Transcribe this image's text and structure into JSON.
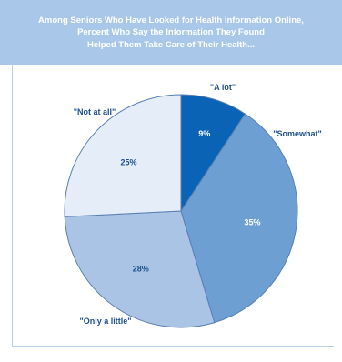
{
  "colors": {
    "title_band": "#a9c7e8",
    "title_text": "#ffffff",
    "rule": "#b7cfe9",
    "slice_outline": "#5b7fb3",
    "label_text": "#1f4f8c",
    "value_text_light": "#ffffff"
  },
  "chart_data": {
    "type": "pie",
    "title_lines": [
      "Among Seniors Who Have Looked for Health Information Online,",
      "Percent Who Say the Information They Found",
      "Helped Them Take Care of Their Health..."
    ],
    "slices": [
      {
        "label": "\"A lot\"",
        "value": 9,
        "display": "9%",
        "color": "#0a63b4"
      },
      {
        "label": "\"Somewhat\"",
        "value": 35,
        "display": "35%",
        "color": "#6e9fd2"
      },
      {
        "label": "\"Only a little\"",
        "value": 28,
        "display": "28%",
        "color": "#a9c4e5"
      },
      {
        "label": "\"Not at all\"",
        "value": 25,
        "display": "25%",
        "color": "#e4edf8"
      }
    ],
    "start_angle_deg": 0,
    "direction": "clockwise"
  }
}
